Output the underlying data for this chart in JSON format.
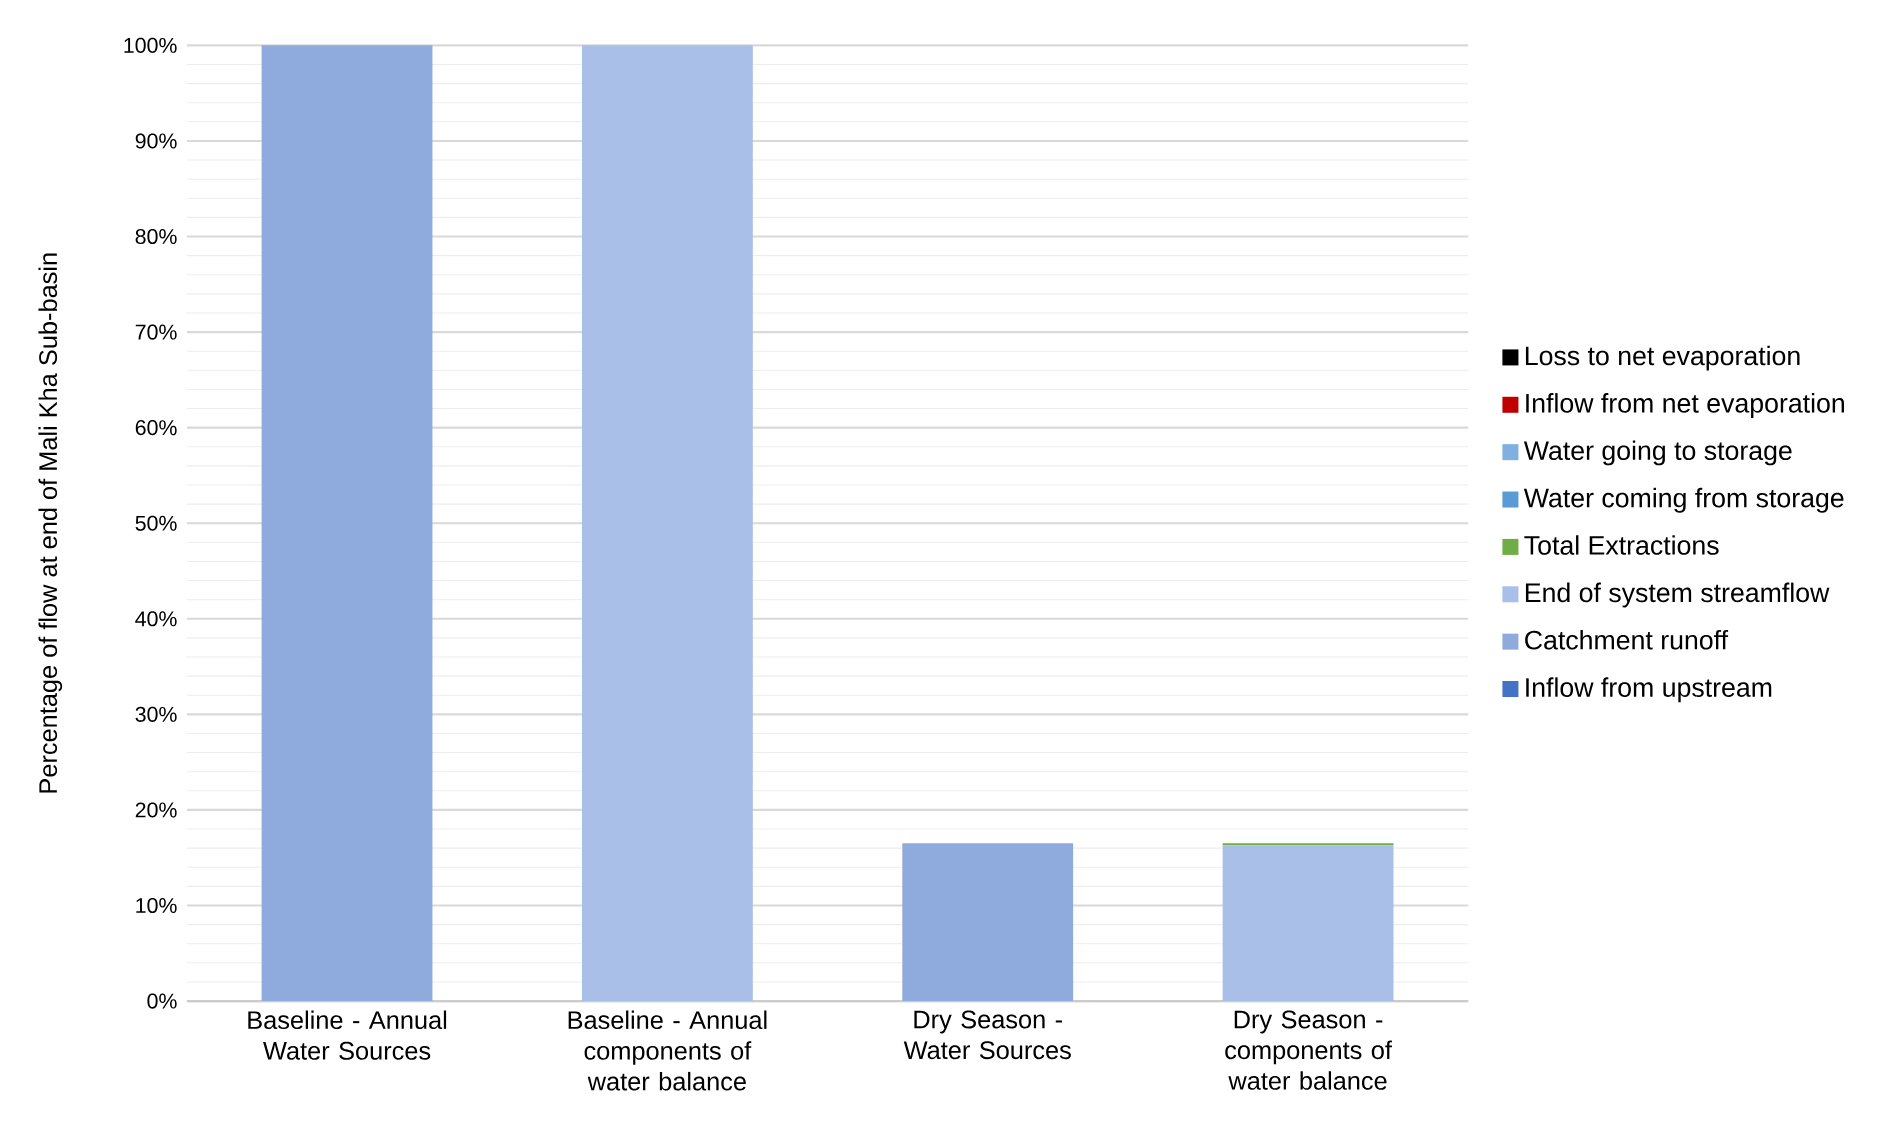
{
  "chart_data": {
    "type": "bar",
    "stacked": true,
    "ylabel": "Percentage of flow at end of Mali Kha Sub-basin",
    "categories": [
      "Baseline - Annual Water Sources",
      "Baseline - Annual components of water balance",
      "Dry Season - Water Sources",
      "Dry Season - components of water balance"
    ],
    "series": [
      {
        "name": "Inflow from upstream",
        "color": "#4472c4",
        "values": [
          0,
          0,
          0,
          0
        ]
      },
      {
        "name": "Catchment runoff",
        "color": "#8faadc",
        "values": [
          100,
          0,
          16.5,
          0
        ]
      },
      {
        "name": "End of system streamflow",
        "color": "#a9bfe8",
        "values": [
          0,
          100,
          0,
          16.3
        ]
      },
      {
        "name": "Total Extractions",
        "color": "#70ad47",
        "values": [
          0,
          0,
          0,
          0.2
        ]
      },
      {
        "name": "Water coming from storage",
        "color": "#5b9bd5",
        "values": [
          0,
          0,
          0,
          0
        ]
      },
      {
        "name": "Water going to storage",
        "color": "#7fb0e0",
        "values": [
          0,
          0,
          0,
          0
        ]
      },
      {
        "name": "Inflow from net evaporation",
        "color": "#c00000",
        "values": [
          0,
          0,
          0,
          0
        ]
      },
      {
        "name": "Loss to net evaporation",
        "color": "#000000",
        "values": [
          0,
          0,
          0,
          0
        ]
      }
    ],
    "ylim": [
      0,
      100
    ],
    "yticks": [
      {
        "value": 0,
        "label": "0%"
      },
      {
        "value": 10,
        "label": "10%"
      },
      {
        "value": 20,
        "label": "20%"
      },
      {
        "value": 30,
        "label": "30%"
      },
      {
        "value": 40,
        "label": "40%"
      },
      {
        "value": 50,
        "label": "50%"
      },
      {
        "value": 60,
        "label": "60%"
      },
      {
        "value": 70,
        "label": "70%"
      },
      {
        "value": 80,
        "label": "80%"
      },
      {
        "value": 90,
        "label": "90%"
      },
      {
        "value": 100,
        "label": "100%"
      }
    ],
    "grid": "y",
    "legend": "right"
  }
}
